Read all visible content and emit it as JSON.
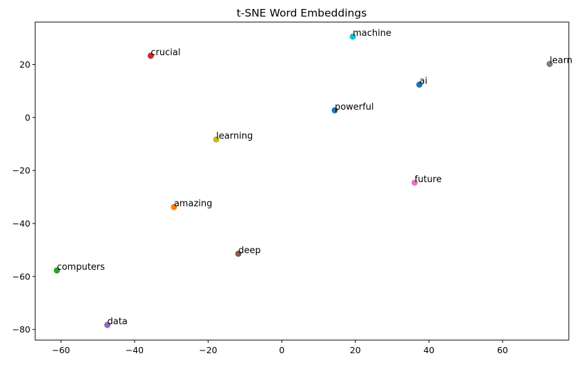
{
  "chart_data": {
    "type": "scatter",
    "title": "t-SNE Word Embeddings",
    "xlabel": "",
    "ylabel": "",
    "xlim": [
      -67,
      78
    ],
    "ylim": [
      -84,
      36
    ],
    "x_ticks": [
      -60,
      -40,
      -20,
      0,
      20,
      40,
      60
    ],
    "y_ticks": [
      20,
      0,
      -20,
      -40,
      -60,
      -80
    ],
    "x_tick_labels": [
      "−60",
      "−40",
      "−20",
      "0",
      "20",
      "40",
      "60"
    ],
    "y_tick_labels": [
      "20",
      "0",
      "−20",
      "−40",
      "−60",
      "−80"
    ],
    "grid": false,
    "points": [
      {
        "label": "machine",
        "x": 19.3,
        "y": 30.5,
        "color": "#17becf"
      },
      {
        "label": "crucial",
        "x": -35.6,
        "y": 23.3,
        "color": "#d62728"
      },
      {
        "label": "learn",
        "x": 72.8,
        "y": 20.2,
        "color": "#7f7f7f"
      },
      {
        "label": "ai",
        "x": 37.4,
        "y": 12.4,
        "color": "#1f77b4"
      },
      {
        "label": "powerful",
        "x": 14.4,
        "y": 2.7,
        "color": "#1f77b4"
      },
      {
        "label": "learning",
        "x": -17.8,
        "y": -8.3,
        "color": "#bcbd22"
      },
      {
        "label": "future",
        "x": 36.1,
        "y": -24.6,
        "color": "#e377c2"
      },
      {
        "label": "amazing",
        "x": -29.3,
        "y": -33.8,
        "color": "#ff7f0e"
      },
      {
        "label": "deep",
        "x": -11.8,
        "y": -51.4,
        "color": "#8c564b"
      },
      {
        "label": "computers",
        "x": -61.1,
        "y": -57.7,
        "color": "#2ca02c"
      },
      {
        "label": "data",
        "x": -47.4,
        "y": -78.3,
        "color": "#9467bd"
      }
    ]
  }
}
